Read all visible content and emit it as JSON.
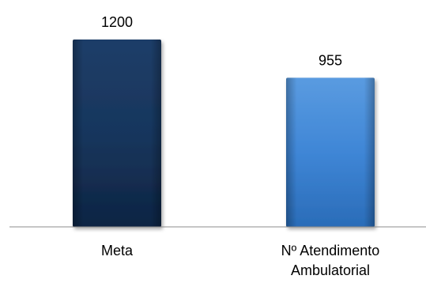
{
  "chart_data": {
    "type": "bar",
    "categories": [
      "Meta",
      "Nº Atendimento Ambulatorial"
    ],
    "category_lines": [
      [
        "Meta"
      ],
      [
        "Nº Atendimento",
        "Ambulatorial"
      ]
    ],
    "values": [
      1200,
      955
    ],
    "data_labels": [
      "1200",
      "955"
    ],
    "ylim": [
      0,
      1200
    ],
    "grid": false,
    "legend": "none",
    "colors": {
      "bars": [
        {
          "top": "#1f3d68",
          "mid": "#17365d",
          "bottom": "#0e2443"
        },
        {
          "top": "#5a9be0",
          "mid": "#3f86d6",
          "bottom": "#2a6cb8"
        }
      ],
      "axis": "#8c8c8c",
      "bar_shadow": "#000000"
    }
  }
}
